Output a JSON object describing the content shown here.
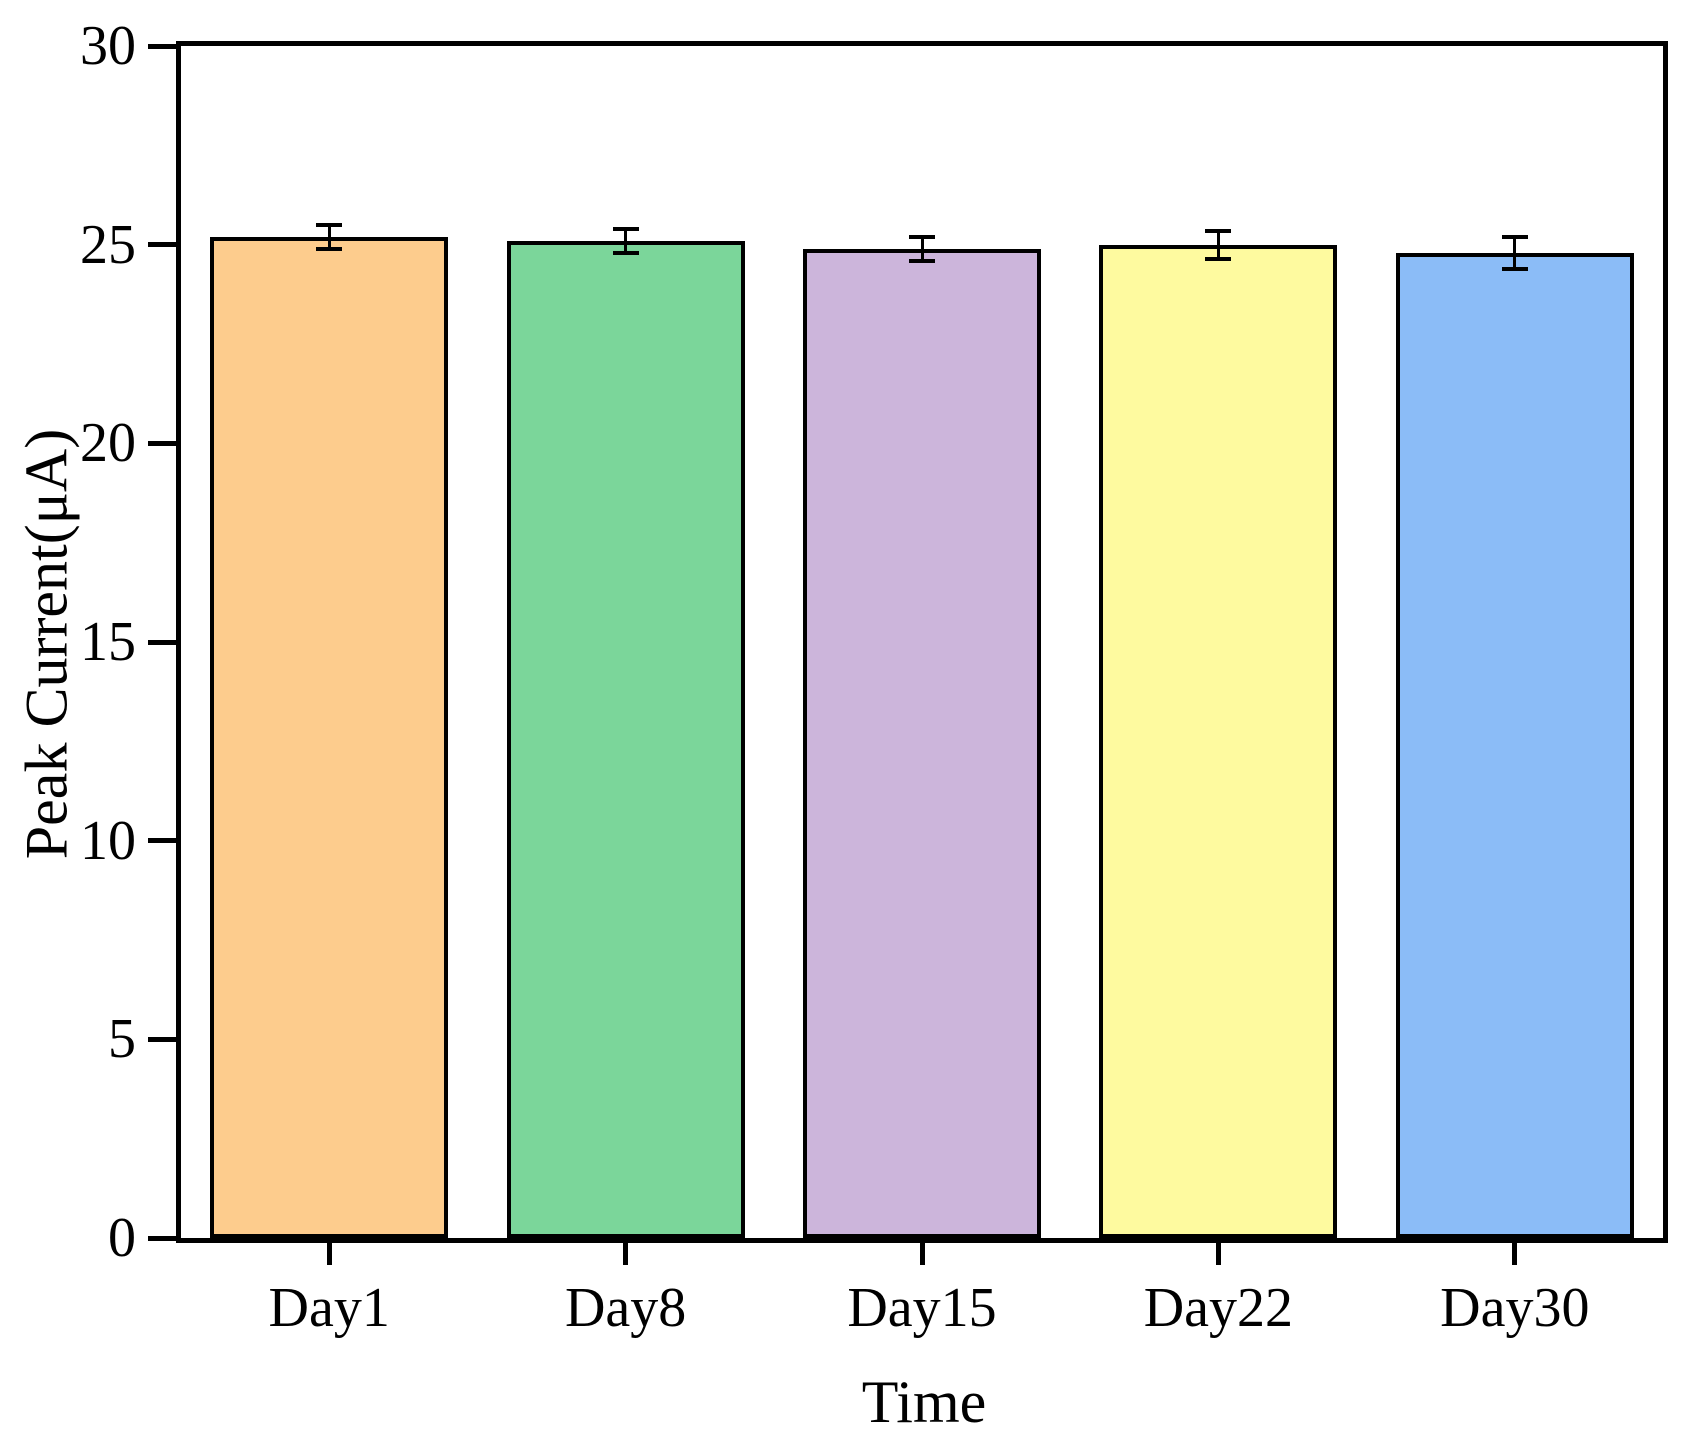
{
  "chart_data": {
    "type": "bar",
    "title": "",
    "xlabel": "Time",
    "ylabel": "Peak Current(μA)",
    "categories": [
      "Day1",
      "Day8",
      "Day15",
      "Day22",
      "Day30"
    ],
    "values": [
      25.2,
      25.1,
      24.9,
      25.0,
      24.8
    ],
    "error_bars": [
      0.3,
      0.3,
      0.3,
      0.35,
      0.4
    ],
    "bar_colors": [
      "#FDCC8D",
      "#7BD69A",
      "#CCB5DB",
      "#FEFA9F",
      "#8BBCF7"
    ],
    "bar_edge_color": "#000000",
    "axis_color": "#000000",
    "ylim": [
      0,
      30
    ],
    "yticks": [
      0,
      5,
      10,
      15,
      20,
      25,
      30
    ],
    "grid": false,
    "legend": null
  }
}
